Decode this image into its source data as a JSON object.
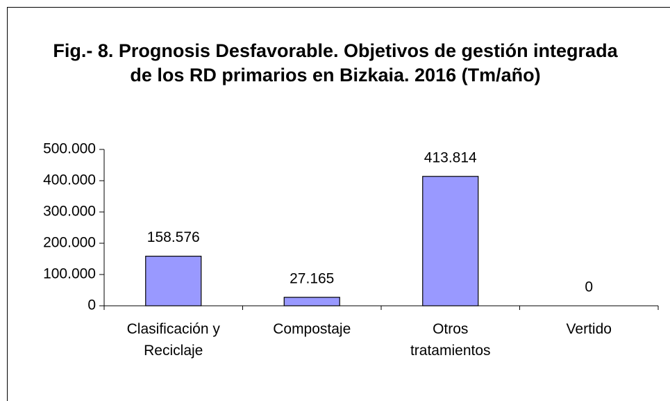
{
  "chart_data": {
    "type": "bar",
    "title": "Fig.- 8. Prognosis Desfavorable. Objetivos de gestión integrada de los RD primarios en Bizkaia. 2016 (Tm/año)",
    "categories": [
      "Clasificación y Reciclaje",
      "Compostaje",
      "Otros tratamientos",
      "Vertido"
    ],
    "values": [
      158576,
      27165,
      413814,
      0
    ],
    "value_labels": [
      "158.576",
      "27.165",
      "413.814",
      "0"
    ],
    "color": "#9999ff",
    "ylim": [
      0,
      500000
    ],
    "yticks": [
      0,
      {
        "value": 100000,
        "label": "100.000"
      },
      {
        "value": 200000,
        "label": "200.000"
      },
      {
        "value": 300000,
        "label": "300.000"
      },
      {
        "value": 400000,
        "label": "400.000"
      },
      {
        "value": 500000,
        "label": "500.000"
      }
    ],
    "grid": false
  }
}
